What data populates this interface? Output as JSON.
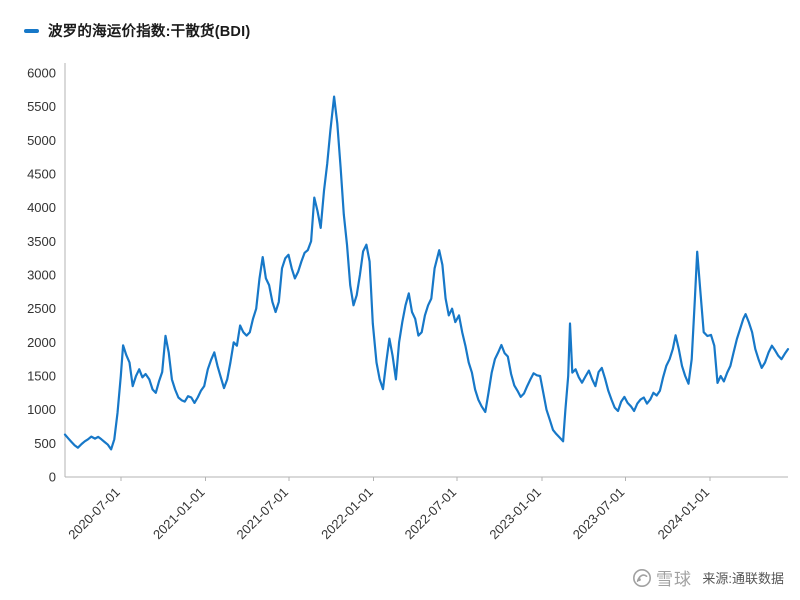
{
  "legend": {
    "label": "波罗的海运价指数:干散货(BDI)"
  },
  "footer": {
    "source": "来源:通联数据"
  },
  "watermark": {
    "text": "雪球"
  },
  "chart_data": {
    "type": "line",
    "title": "波罗的海运价指数:干散货(BDI)",
    "line_color": "#1778c8",
    "background": "#ffffff",
    "grid": false,
    "legend_position": "top-left",
    "y_axis": {
      "min": 0,
      "max": 6000,
      "step": 500
    },
    "x_ticks": [
      "2020-07-01",
      "2021-01-01",
      "2021-07-01",
      "2022-01-01",
      "2022-07-01",
      "2023-01-01",
      "2023-07-01",
      "2024-01-01"
    ],
    "series": [
      {
        "name": "波罗的海运价指数:干散货(BDI)",
        "points": [
          [
            "2020-03-02",
            630
          ],
          [
            "2020-03-09",
            575
          ],
          [
            "2020-03-16",
            520
          ],
          [
            "2020-03-23",
            470
          ],
          [
            "2020-03-30",
            435
          ],
          [
            "2020-04-07",
            490
          ],
          [
            "2020-04-14",
            530
          ],
          [
            "2020-04-21",
            560
          ],
          [
            "2020-04-28",
            600
          ],
          [
            "2020-05-06",
            570
          ],
          [
            "2020-05-13",
            595
          ],
          [
            "2020-05-20",
            560
          ],
          [
            "2020-05-27",
            520
          ],
          [
            "2020-06-03",
            480
          ],
          [
            "2020-06-10",
            410
          ],
          [
            "2020-06-17",
            560
          ],
          [
            "2020-06-24",
            950
          ],
          [
            "2020-07-01",
            1500
          ],
          [
            "2020-07-06",
            1956
          ],
          [
            "2020-07-13",
            1810
          ],
          [
            "2020-07-20",
            1700
          ],
          [
            "2020-07-27",
            1350
          ],
          [
            "2020-08-03",
            1500
          ],
          [
            "2020-08-10",
            1600
          ],
          [
            "2020-08-17",
            1480
          ],
          [
            "2020-08-24",
            1530
          ],
          [
            "2020-09-01",
            1450
          ],
          [
            "2020-09-08",
            1300
          ],
          [
            "2020-09-15",
            1250
          ],
          [
            "2020-09-22",
            1420
          ],
          [
            "2020-09-29",
            1560
          ],
          [
            "2020-10-06",
            2097
          ],
          [
            "2020-10-13",
            1850
          ],
          [
            "2020-10-20",
            1450
          ],
          [
            "2020-10-27",
            1300
          ],
          [
            "2020-11-03",
            1180
          ],
          [
            "2020-11-10",
            1140
          ],
          [
            "2020-11-17",
            1120
          ],
          [
            "2020-11-24",
            1200
          ],
          [
            "2020-12-01",
            1180
          ],
          [
            "2020-12-08",
            1100
          ],
          [
            "2020-12-15",
            1180
          ],
          [
            "2020-12-22",
            1280
          ],
          [
            "2020-12-29",
            1350
          ],
          [
            "2021-01-06",
            1600
          ],
          [
            "2021-01-13",
            1740
          ],
          [
            "2021-01-20",
            1850
          ],
          [
            "2021-01-27",
            1650
          ],
          [
            "2021-02-03",
            1480
          ],
          [
            "2021-02-10",
            1320
          ],
          [
            "2021-02-17",
            1450
          ],
          [
            "2021-02-24",
            1700
          ],
          [
            "2021-03-03",
            2000
          ],
          [
            "2021-03-10",
            1950
          ],
          [
            "2021-03-17",
            2250
          ],
          [
            "2021-03-24",
            2150
          ],
          [
            "2021-03-31",
            2100
          ],
          [
            "2021-04-07",
            2150
          ],
          [
            "2021-04-14",
            2350
          ],
          [
            "2021-04-21",
            2500
          ],
          [
            "2021-04-28",
            2950
          ],
          [
            "2021-05-05",
            3266
          ],
          [
            "2021-05-12",
            2950
          ],
          [
            "2021-05-19",
            2850
          ],
          [
            "2021-05-26",
            2600
          ],
          [
            "2021-06-02",
            2450
          ],
          [
            "2021-06-09",
            2600
          ],
          [
            "2021-06-16",
            3100
          ],
          [
            "2021-06-23",
            3250
          ],
          [
            "2021-06-30",
            3300
          ],
          [
            "2021-07-07",
            3100
          ],
          [
            "2021-07-14",
            2950
          ],
          [
            "2021-07-21",
            3050
          ],
          [
            "2021-07-28",
            3200
          ],
          [
            "2021-08-04",
            3330
          ],
          [
            "2021-08-11",
            3370
          ],
          [
            "2021-08-18",
            3500
          ],
          [
            "2021-08-25",
            4150
          ],
          [
            "2021-09-01",
            3950
          ],
          [
            "2021-09-08",
            3700
          ],
          [
            "2021-09-15",
            4250
          ],
          [
            "2021-09-22",
            4650
          ],
          [
            "2021-09-29",
            5150
          ],
          [
            "2021-10-07",
            5650
          ],
          [
            "2021-10-14",
            5250
          ],
          [
            "2021-10-21",
            4600
          ],
          [
            "2021-10-28",
            3900
          ],
          [
            "2021-11-04",
            3450
          ],
          [
            "2021-11-11",
            2850
          ],
          [
            "2021-11-18",
            2550
          ],
          [
            "2021-11-25",
            2700
          ],
          [
            "2021-12-02",
            3000
          ],
          [
            "2021-12-09",
            3350
          ],
          [
            "2021-12-16",
            3450
          ],
          [
            "2021-12-23",
            3200
          ],
          [
            "2021-12-30",
            2280
          ],
          [
            "2022-01-07",
            1700
          ],
          [
            "2022-01-14",
            1450
          ],
          [
            "2022-01-21",
            1306
          ],
          [
            "2022-01-28",
            1700
          ],
          [
            "2022-02-04",
            2055
          ],
          [
            "2022-02-11",
            1800
          ],
          [
            "2022-02-18",
            1450
          ],
          [
            "2022-02-25",
            2000
          ],
          [
            "2022-03-04",
            2300
          ],
          [
            "2022-03-11",
            2550
          ],
          [
            "2022-03-18",
            2727
          ],
          [
            "2022-03-25",
            2450
          ],
          [
            "2022-04-01",
            2350
          ],
          [
            "2022-04-08",
            2100
          ],
          [
            "2022-04-15",
            2150
          ],
          [
            "2022-04-22",
            2400
          ],
          [
            "2022-04-29",
            2550
          ],
          [
            "2022-05-06",
            2650
          ],
          [
            "2022-05-13",
            3100
          ],
          [
            "2022-05-23",
            3369
          ],
          [
            "2022-05-30",
            3150
          ],
          [
            "2022-06-06",
            2650
          ],
          [
            "2022-06-13",
            2400
          ],
          [
            "2022-06-20",
            2500
          ],
          [
            "2022-06-27",
            2300
          ],
          [
            "2022-07-05",
            2400
          ],
          [
            "2022-07-12",
            2150
          ],
          [
            "2022-07-19",
            1950
          ],
          [
            "2022-07-26",
            1700
          ],
          [
            "2022-08-02",
            1550
          ],
          [
            "2022-08-09",
            1300
          ],
          [
            "2022-08-16",
            1150
          ],
          [
            "2022-08-23",
            1050
          ],
          [
            "2022-08-31",
            965
          ],
          [
            "2022-09-07",
            1250
          ],
          [
            "2022-09-14",
            1550
          ],
          [
            "2022-09-21",
            1750
          ],
          [
            "2022-09-28",
            1850
          ],
          [
            "2022-10-05",
            1960
          ],
          [
            "2022-10-12",
            1840
          ],
          [
            "2022-10-19",
            1790
          ],
          [
            "2022-10-26",
            1530
          ],
          [
            "2022-11-02",
            1360
          ],
          [
            "2022-11-09",
            1280
          ],
          [
            "2022-11-16",
            1190
          ],
          [
            "2022-11-23",
            1240
          ],
          [
            "2022-11-30",
            1350
          ],
          [
            "2022-12-07",
            1450
          ],
          [
            "2022-12-14",
            1540
          ],
          [
            "2022-12-21",
            1510
          ],
          [
            "2022-12-28",
            1500
          ],
          [
            "2023-01-04",
            1250
          ],
          [
            "2023-01-11",
            1000
          ],
          [
            "2023-01-18",
            850
          ],
          [
            "2023-01-25",
            700
          ],
          [
            "2023-02-01",
            640
          ],
          [
            "2023-02-08",
            590
          ],
          [
            "2023-02-16",
            530
          ],
          [
            "2023-02-21",
            1000
          ],
          [
            "2023-02-27",
            1500
          ],
          [
            "2023-03-03",
            2280
          ],
          [
            "2023-03-08",
            1550
          ],
          [
            "2023-03-15",
            1600
          ],
          [
            "2023-03-22",
            1480
          ],
          [
            "2023-03-29",
            1400
          ],
          [
            "2023-04-06",
            1500
          ],
          [
            "2023-04-13",
            1580
          ],
          [
            "2023-04-20",
            1450
          ],
          [
            "2023-04-27",
            1350
          ],
          [
            "2023-05-04",
            1560
          ],
          [
            "2023-05-11",
            1620
          ],
          [
            "2023-05-18",
            1460
          ],
          [
            "2023-05-25",
            1280
          ],
          [
            "2023-06-01",
            1150
          ],
          [
            "2023-06-08",
            1030
          ],
          [
            "2023-06-15",
            980
          ],
          [
            "2023-06-22",
            1120
          ],
          [
            "2023-06-29",
            1190
          ],
          [
            "2023-07-06",
            1100
          ],
          [
            "2023-07-13",
            1050
          ],
          [
            "2023-07-20",
            980
          ],
          [
            "2023-07-27",
            1090
          ],
          [
            "2023-08-03",
            1150
          ],
          [
            "2023-08-10",
            1180
          ],
          [
            "2023-08-17",
            1090
          ],
          [
            "2023-08-24",
            1150
          ],
          [
            "2023-08-31",
            1250
          ],
          [
            "2023-09-07",
            1210
          ],
          [
            "2023-09-14",
            1280
          ],
          [
            "2023-09-21",
            1480
          ],
          [
            "2023-09-28",
            1650
          ],
          [
            "2023-10-05",
            1750
          ],
          [
            "2023-10-12",
            1900
          ],
          [
            "2023-10-18",
            2105
          ],
          [
            "2023-10-25",
            1900
          ],
          [
            "2023-11-01",
            1650
          ],
          [
            "2023-11-08",
            1500
          ],
          [
            "2023-11-15",
            1385
          ],
          [
            "2023-11-22",
            1750
          ],
          [
            "2023-11-29",
            2650
          ],
          [
            "2023-12-04",
            3346
          ],
          [
            "2023-12-11",
            2750
          ],
          [
            "2023-12-18",
            2150
          ],
          [
            "2023-12-26",
            2094
          ],
          [
            "2024-01-03",
            2110
          ],
          [
            "2024-01-10",
            1950
          ],
          [
            "2024-01-17",
            1398
          ],
          [
            "2024-01-24",
            1500
          ],
          [
            "2024-01-31",
            1420
          ],
          [
            "2024-02-07",
            1550
          ],
          [
            "2024-02-14",
            1650
          ],
          [
            "2024-02-21",
            1850
          ],
          [
            "2024-02-28",
            2050
          ],
          [
            "2024-03-06",
            2200
          ],
          [
            "2024-03-13",
            2350
          ],
          [
            "2024-03-18",
            2419
          ],
          [
            "2024-03-25",
            2300
          ],
          [
            "2024-04-01",
            2150
          ],
          [
            "2024-04-08",
            1900
          ],
          [
            "2024-04-15",
            1750
          ],
          [
            "2024-04-22",
            1620
          ],
          [
            "2024-04-29",
            1700
          ],
          [
            "2024-05-07",
            1850
          ],
          [
            "2024-05-14",
            1950
          ],
          [
            "2024-05-21",
            1880
          ],
          [
            "2024-05-28",
            1800
          ],
          [
            "2024-06-04",
            1750
          ],
          [
            "2024-06-11",
            1830
          ],
          [
            "2024-06-18",
            1900
          ]
        ]
      }
    ]
  }
}
